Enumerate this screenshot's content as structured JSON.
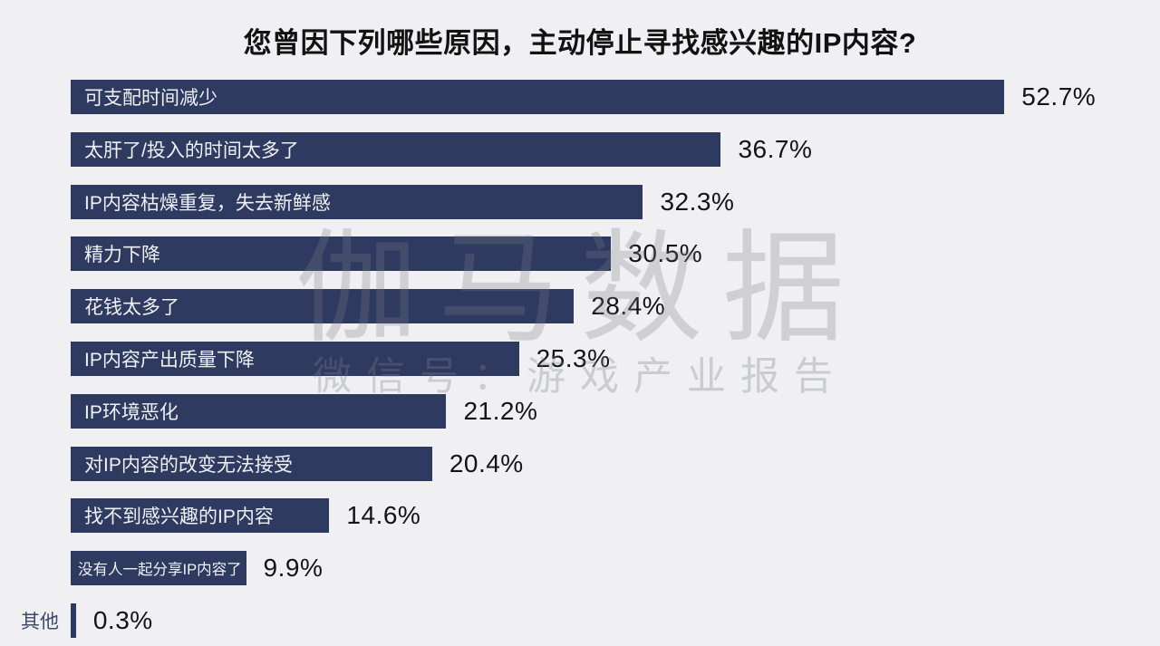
{
  "title": "您曾因下列哪些原因，主动停止寻找感兴趣的IP内容?",
  "watermark": {
    "line1": "伽马数据",
    "line2": "微信号：游戏产业报告"
  },
  "colors": {
    "background": "#f0f0f2",
    "bar": "#2e3a60",
    "bar_label_text": "#eef0f6",
    "value_text": "#141414",
    "outside_label_text": "#3d486b",
    "watermark": "#d6d6da"
  },
  "chart_data": {
    "type": "bar",
    "orientation": "horizontal",
    "title": "您曾因下列哪些原因，主动停止寻找感兴趣的IP内容?",
    "xlabel": "",
    "ylabel": "",
    "xlim": [
      0,
      55
    ],
    "grid": false,
    "legend": false,
    "categories": [
      "可支配时间减少",
      "太肝了/投入的时间太多了",
      "IP内容枯燥重复，失去新鲜感",
      "精力下降",
      "花钱太多了",
      "IP内容产出质量下降",
      "IP环境恶化",
      "对IP内容的改变无法接受",
      "找不到感兴趣的IP内容",
      "没有人一起分享IP内容了",
      "其他"
    ],
    "values": [
      52.7,
      36.7,
      32.3,
      30.5,
      28.4,
      25.3,
      21.2,
      20.4,
      14.6,
      9.9,
      0.3
    ],
    "value_labels": [
      "52.7%",
      "36.7%",
      "32.3%",
      "30.5%",
      "28.4%",
      "25.3%",
      "21.2%",
      "20.4%",
      "14.6%",
      "9.9%",
      "0.3%"
    ],
    "bars": [
      {
        "label": "可支配时间减少",
        "value": 52.7,
        "display": "52.7%",
        "label_position": "inside",
        "small_label": false
      },
      {
        "label": "太肝了/投入的时间太多了",
        "value": 36.7,
        "display": "36.7%",
        "label_position": "inside",
        "small_label": false
      },
      {
        "label": "IP内容枯燥重复，失去新鲜感",
        "value": 32.3,
        "display": "32.3%",
        "label_position": "inside",
        "small_label": false
      },
      {
        "label": "精力下降",
        "value": 30.5,
        "display": "30.5%",
        "label_position": "inside",
        "small_label": false
      },
      {
        "label": "花钱太多了",
        "value": 28.4,
        "display": "28.4%",
        "label_position": "inside",
        "small_label": false
      },
      {
        "label": "IP内容产出质量下降",
        "value": 25.3,
        "display": "25.3%",
        "label_position": "inside",
        "small_label": false
      },
      {
        "label": "IP环境恶化",
        "value": 21.2,
        "display": "21.2%",
        "label_position": "inside",
        "small_label": false
      },
      {
        "label": "对IP内容的改变无法接受",
        "value": 20.4,
        "display": "20.4%",
        "label_position": "inside",
        "small_label": false
      },
      {
        "label": "找不到感兴趣的IP内容",
        "value": 14.6,
        "display": "14.6%",
        "label_position": "inside",
        "small_label": false
      },
      {
        "label": "没有人一起分享IP内容了",
        "value": 9.9,
        "display": "9.9%",
        "label_position": "inside",
        "small_label": true
      },
      {
        "label": "其他",
        "value": 0.3,
        "display": "0.3%",
        "label_position": "outside",
        "small_label": false
      }
    ]
  }
}
